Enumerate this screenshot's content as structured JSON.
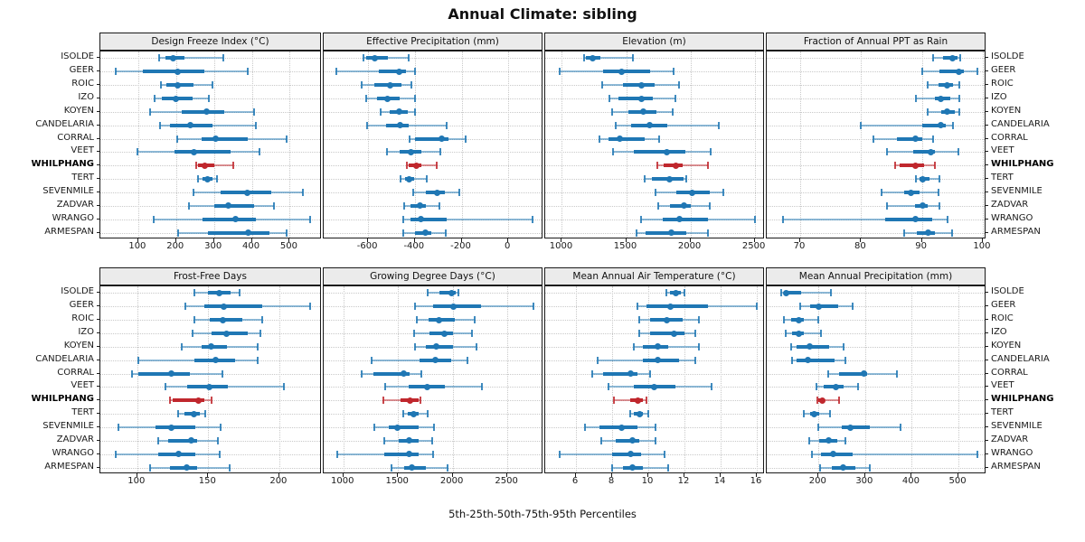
{
  "title": "Annual Climate: sibling",
  "xlabel": "5th-25th-50th-75th-95th Percentiles",
  "stations": [
    "ISOLDE",
    "GEER",
    "ROIC",
    "IZO",
    "KOYEN",
    "CANDELARIA",
    "CORRAL",
    "VEET",
    "WHILPHANG",
    "TERT",
    "SEVENMILE",
    "ZADVAR",
    "WRANGO",
    "ARMESPAN"
  ],
  "highlight_station": "WHILPHANG",
  "colors": {
    "normal": "#1f77b4",
    "highlight": "#c0272d",
    "header_bg": "#ebebeb",
    "border": "#1a1a1a",
    "grid": "#c9c9c9"
  },
  "chart_data": {
    "type": "percentile-dotplot",
    "layout": {
      "rows": 2,
      "cols": 4
    },
    "percentiles": [
      "5th",
      "25th",
      "50th",
      "75th",
      "95th"
    ],
    "panels": [
      {
        "title": "Design Freeze Index (°C)",
        "ticks": [
          100,
          200,
          300,
          400,
          500
        ],
        "xmin": 0,
        "xmax": 585,
        "values": [
          [
            155,
            172,
            193,
            223,
            324
          ],
          [
            40,
            112,
            205,
            275,
            390
          ],
          [
            160,
            175,
            205,
            247,
            295
          ],
          [
            144,
            163,
            199,
            243,
            287
          ],
          [
            132,
            215,
            280,
            327,
            406
          ],
          [
            158,
            184,
            237,
            295,
            410
          ],
          [
            202,
            267,
            305,
            390,
            492
          ],
          [
            98,
            195,
            247,
            344,
            421
          ],
          [
            253,
            259,
            275,
            301,
            351
          ],
          [
            257,
            269,
            283,
            296,
            307
          ],
          [
            247,
            317,
            388,
            452,
            534
          ],
          [
            233,
            301,
            339,
            406,
            459
          ],
          [
            142,
            271,
            357,
            410,
            555
          ],
          [
            205,
            283,
            390,
            446,
            491
          ]
        ]
      },
      {
        "title": "Effective Precipitation (mm)",
        "ticks": [
          -600,
          -400,
          -200,
          0
        ],
        "xmin": -790,
        "xmax": 150,
        "values": [
          [
            -619,
            -607,
            -570,
            -516,
            -428
          ],
          [
            -734,
            -555,
            -466,
            -438,
            -399
          ],
          [
            -626,
            -574,
            -505,
            -457,
            -415
          ],
          [
            -607,
            -561,
            -518,
            -464,
            -399
          ],
          [
            -546,
            -509,
            -466,
            -432,
            -399
          ],
          [
            -604,
            -522,
            -464,
            -425,
            -265
          ],
          [
            -421,
            -399,
            -285,
            -256,
            -181
          ],
          [
            -518,
            -466,
            -416,
            -373,
            -290
          ],
          [
            -434,
            -425,
            -395,
            -373,
            -306
          ],
          [
            -461,
            -440,
            -425,
            -405,
            -350
          ],
          [
            -408,
            -354,
            -306,
            -272,
            -211
          ],
          [
            -444,
            -418,
            -377,
            -354,
            -295
          ],
          [
            -451,
            -418,
            -373,
            -263,
            105
          ],
          [
            -451,
            -399,
            -354,
            -328,
            -269
          ]
        ]
      },
      {
        "title": "Elevation (m)",
        "ticks": [
          1000,
          1500,
          2000,
          2500
        ],
        "xmin": 870,
        "xmax": 2580,
        "values": [
          [
            1172,
            1184,
            1237,
            1300,
            1555
          ],
          [
            983,
            1318,
            1466,
            1689,
            1866
          ],
          [
            1313,
            1473,
            1618,
            1724,
            1913
          ],
          [
            1367,
            1442,
            1618,
            1706,
            1882
          ],
          [
            1390,
            1520,
            1635,
            1736,
            1861
          ],
          [
            1419,
            1541,
            1685,
            1819,
            2219
          ],
          [
            1289,
            1360,
            1449,
            1642,
            1760
          ],
          [
            1395,
            1560,
            1814,
            1960,
            2160
          ],
          [
            1741,
            1795,
            1889,
            1943,
            2137
          ],
          [
            1645,
            1700,
            1835,
            1945,
            1965
          ],
          [
            1730,
            1890,
            2015,
            2150,
            2255
          ],
          [
            1748,
            1842,
            1953,
            2000,
            2153
          ],
          [
            1618,
            1784,
            1918,
            2137,
            2506
          ],
          [
            1579,
            1654,
            1849,
            1965,
            2137
          ]
        ]
      },
      {
        "title": "Fraction of Annual PPT as Rain",
        "ticks": [
          70,
          80,
          90,
          100
        ],
        "xmin": 64.5,
        "xmax": 100.6,
        "values": [
          [
            91.9,
            93.5,
            95.1,
            95.9,
            96.3
          ],
          [
            90.1,
            92.9,
            96.0,
            96.9,
            99.1
          ],
          [
            91.0,
            92.7,
            94.1,
            95.1,
            96.1
          ],
          [
            89.0,
            92.2,
            93.1,
            94.7,
            96.1
          ],
          [
            91.0,
            93.2,
            94.2,
            95.4,
            96.1
          ],
          [
            79.9,
            90.1,
            93.1,
            93.9,
            95.1
          ],
          [
            82.1,
            85.9,
            89.0,
            90.0,
            91.9
          ],
          [
            84.2,
            88.5,
            91.5,
            92.2,
            96.0
          ],
          [
            85.6,
            86.4,
            89.0,
            90.4,
            92.1
          ],
          [
            89.0,
            89.6,
            90.1,
            91.2,
            92.9
          ],
          [
            83.3,
            87.1,
            88.2,
            89.6,
            92.8
          ],
          [
            84.2,
            88.9,
            90.1,
            90.9,
            92.9
          ],
          [
            67.2,
            83.9,
            89.0,
            91.7,
            94.2
          ],
          [
            87.1,
            89.2,
            91.0,
            92.2,
            95.0
          ]
        ]
      },
      {
        "title": "Frost-Free Days",
        "ticks": [
          100,
          150,
          200
        ],
        "xmin": 74,
        "xmax": 230,
        "values": [
          [
            140,
            150,
            158,
            166,
            172
          ],
          [
            134,
            147,
            161,
            188,
            222
          ],
          [
            140,
            151,
            160,
            174,
            188
          ],
          [
            139,
            152,
            163,
            178,
            187
          ],
          [
            131,
            145,
            152,
            163,
            185
          ],
          [
            101,
            140,
            155,
            169,
            185
          ],
          [
            96,
            101,
            124,
            137,
            160
          ],
          [
            120,
            135,
            151,
            164,
            203
          ],
          [
            123,
            125,
            143,
            147,
            152
          ],
          [
            129,
            133,
            140,
            144,
            148
          ],
          [
            87,
            113,
            124,
            141,
            159
          ],
          [
            115,
            122,
            138,
            142,
            157
          ],
          [
            85,
            115,
            129,
            141,
            158
          ],
          [
            109,
            123,
            135,
            142,
            165
          ]
        ]
      },
      {
        "title": "Growing Degree Days (°C)",
        "ticks": [
          1000,
          1500,
          2000,
          2500
        ],
        "xmin": 820,
        "xmax": 2830,
        "values": [
          [
            1770,
            1880,
            1990,
            2027,
            2052
          ],
          [
            1658,
            1819,
            2010,
            2262,
            2737
          ],
          [
            1672,
            1783,
            1874,
            2018,
            2198
          ],
          [
            1645,
            1791,
            1927,
            2004,
            2179
          ],
          [
            1653,
            1755,
            1847,
            2004,
            2218
          ],
          [
            1257,
            1695,
            1838,
            1990,
            2137
          ],
          [
            1168,
            1276,
            1554,
            1608,
            1714
          ],
          [
            1382,
            1598,
            1770,
            1930,
            2267
          ],
          [
            1363,
            1525,
            1612,
            1686,
            1708
          ],
          [
            1548,
            1589,
            1639,
            1691,
            1774
          ],
          [
            1285,
            1415,
            1492,
            1686,
            1830
          ],
          [
            1376,
            1506,
            1603,
            1691,
            1811
          ],
          [
            948,
            1376,
            1598,
            1686,
            1819
          ],
          [
            1437,
            1554,
            1625,
            1755,
            1957
          ]
        ]
      },
      {
        "title": "Mean Annual Air Temperature (°C)",
        "ticks": [
          6,
          8,
          10,
          12,
          14,
          16
        ],
        "xmin": 4.3,
        "xmax": 16.45,
        "values": [
          [
            11.0,
            11.2,
            11.5,
            11.8,
            12.0
          ],
          [
            9.4,
            9.9,
            11.2,
            13.3,
            16.0
          ],
          [
            9.5,
            10.1,
            11.0,
            11.9,
            12.8
          ],
          [
            9.5,
            10.1,
            11.4,
            12.0,
            12.6
          ],
          [
            9.2,
            9.7,
            10.5,
            11.1,
            12.8
          ],
          [
            7.2,
            9.7,
            10.5,
            11.7,
            12.6
          ],
          [
            6.9,
            7.5,
            9.0,
            9.4,
            10.1
          ],
          [
            7.8,
            9.2,
            10.3,
            11.5,
            13.5
          ],
          [
            8.1,
            9.0,
            9.4,
            9.7,
            9.9
          ],
          [
            9.0,
            9.2,
            9.5,
            9.7,
            10.0
          ],
          [
            6.5,
            7.3,
            8.5,
            9.4,
            10.4
          ],
          [
            7.4,
            8.2,
            9.1,
            9.5,
            10.4
          ],
          [
            5.1,
            8.0,
            9.0,
            9.6,
            10.9
          ],
          [
            8.0,
            8.6,
            9.1,
            9.7,
            11.1
          ]
        ]
      },
      {
        "title": "Mean Annual Precipitation (mm)",
        "ticks": [
          200,
          300,
          400,
          500
        ],
        "xmin": 89,
        "xmax": 560,
        "values": [
          [
            120,
            125,
            130,
            163,
            227
          ],
          [
            161,
            182,
            201,
            243,
            273
          ],
          [
            125,
            142,
            157,
            168,
            200
          ],
          [
            130,
            143,
            157,
            169,
            205
          ],
          [
            142,
            153,
            181,
            222,
            253
          ],
          [
            143,
            153,
            177,
            234,
            258
          ],
          [
            221,
            245,
            298,
            305,
            368
          ],
          [
            195,
            211,
            237,
            254,
            285
          ],
          [
            198,
            200,
            208,
            214,
            245
          ],
          [
            168,
            182,
            190,
            201,
            224
          ],
          [
            200,
            250,
            269,
            310,
            376
          ],
          [
            181,
            201,
            221,
            240,
            258
          ],
          [
            185,
            205,
            232,
            273,
            541
          ],
          [
            203,
            229,
            252,
            279,
            310
          ]
        ]
      }
    ]
  }
}
